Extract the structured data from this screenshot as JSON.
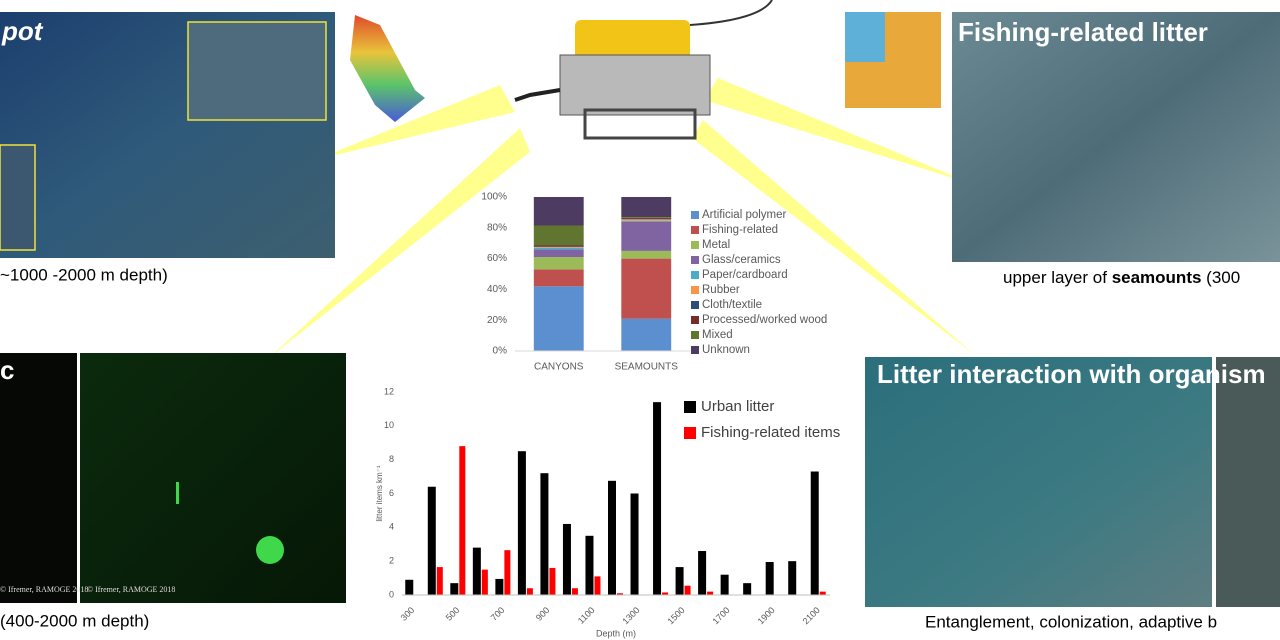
{
  "panels": {
    "seafloor_title": "pot",
    "seafloor_caption": "~1000 -2000 m depth)",
    "fishing_title": "Fishing-related litter",
    "seamount_caption_pre": "upper layer of ",
    "seamount_caption_bold": "seamounts",
    "seamount_caption_post": " (300",
    "plastic_title": "c",
    "credit_left": "© Ifremer, RAMOGE 2018",
    "credit_right": "© Ifremer, RAMOGE 2018",
    "plastic_caption": "(400-2000 m depth)",
    "organisms_title": "Litter interaction with organism",
    "organisms_caption": "Entanglement, colonization, adaptive b"
  },
  "chart_data": [
    {
      "type": "stacked_bar",
      "categories": [
        "CANYONS",
        "SEAMOUNTS"
      ],
      "series": [
        {
          "name": "Artificial polymer",
          "color": "#5b8fcf",
          "values": [
            42,
            21
          ]
        },
        {
          "name": "Fishing-related",
          "color": "#c0504d",
          "values": [
            11,
            39
          ]
        },
        {
          "name": "Metal",
          "color": "#9bbb59",
          "values": [
            8,
            5
          ]
        },
        {
          "name": "Glass/ceramics",
          "color": "#8064a2",
          "values": [
            5,
            19
          ]
        },
        {
          "name": "Paper/cardboard",
          "color": "#4bacc6",
          "values": [
            1,
            0.5
          ]
        },
        {
          "name": "Rubber",
          "color": "#f79646",
          "values": [
            0.5,
            1
          ]
        },
        {
          "name": "Cloth/textile",
          "color": "#2c4d75",
          "values": [
            0.5,
            0.5
          ]
        },
        {
          "name": "Processed/worked wood",
          "color": "#772c2a",
          "values": [
            0.5,
            0.5
          ]
        },
        {
          "name": "Mixed",
          "color": "#5f7530",
          "values": [
            13,
            0.5
          ]
        },
        {
          "name": "Unknown",
          "color": "#4d3b62",
          "values": [
            18.5,
            13
          ]
        }
      ],
      "ylim": [
        0,
        100
      ],
      "yticks": [
        {
          "value": 0,
          "label": "0%"
        },
        {
          "value": 20,
          "label": "20%"
        },
        {
          "value": 40,
          "label": "40%"
        },
        {
          "value": 60,
          "label": "60%"
        },
        {
          "value": 80,
          "label": "80%"
        },
        {
          "value": 100,
          "label": "100%"
        }
      ],
      "grid": false
    },
    {
      "type": "bar",
      "y_label": "litter items km⁻¹",
      "x_label": "Depth (m)",
      "categories": [
        "300",
        null,
        "500",
        null,
        "700",
        null,
        "900",
        null,
        "1100",
        null,
        "1300",
        null,
        "1500",
        null,
        "1700",
        null,
        "1900",
        null,
        "2100"
      ],
      "series": [
        {
          "name": "Urban litter",
          "color": "#000000",
          "values": [
            0.9,
            6.4,
            0.7,
            2.8,
            0.95,
            8.5,
            7.2,
            4.2,
            3.5,
            6.75,
            6.0,
            11.4,
            1.65,
            2.6,
            1.2,
            0.7,
            1.95,
            2.0,
            7.3
          ]
        },
        {
          "name": "Fishing-related items",
          "color": "#ff0000",
          "values": [
            0,
            1.65,
            8.8,
            1.5,
            2.65,
            0.4,
            1.6,
            0.4,
            1.1,
            0.1,
            0,
            0.15,
            0.55,
            0.2,
            0,
            0,
            0,
            0,
            0.2
          ]
        }
      ],
      "ylim": [
        0,
        12
      ],
      "yticks": [
        0,
        2,
        4,
        6,
        8,
        10,
        12
      ],
      "grid": false
    }
  ]
}
